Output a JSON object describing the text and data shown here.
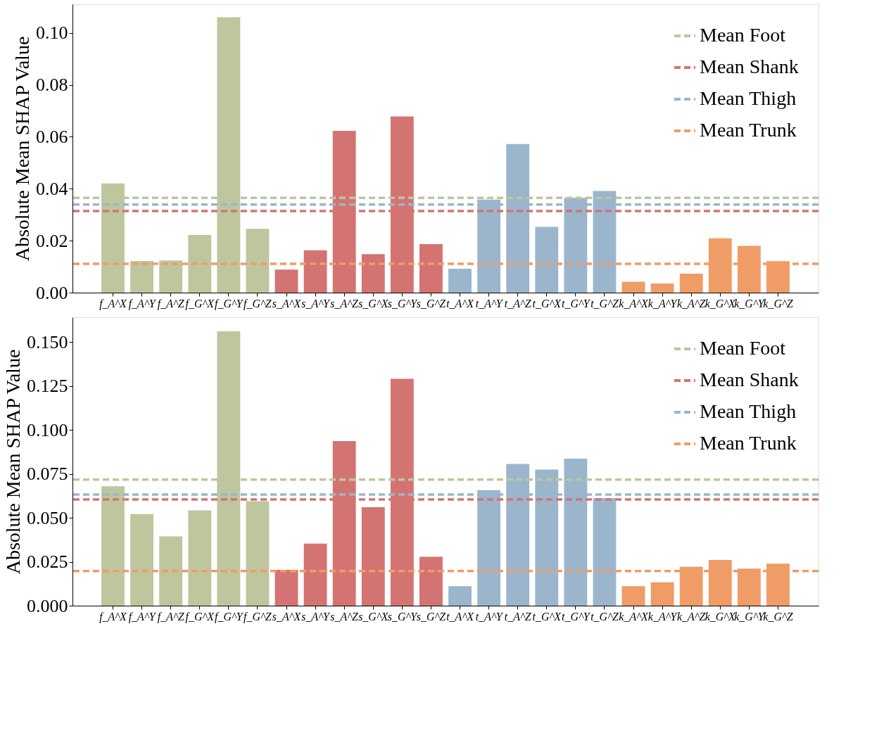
{
  "chart_data": [
    {
      "type": "bar",
      "ylabel": "Absolute Mean SHAP Value",
      "legend": "top right",
      "categories": [
        "f_A^X",
        "f_A^Y",
        "f_A^Z",
        "f_G^X",
        "f_G^Y",
        "f_G^Z",
        "s_A^X",
        "s_A^Y",
        "s_A^Z",
        "s_G^X",
        "s_G^Y",
        "s_G^Z",
        "t_A^X",
        "t_A^Y",
        "t_A^Z",
        "t_G^X",
        "t_G^Y",
        "t_G^Z",
        "k_A^X",
        "k_A^Y",
        "k_A^Z",
        "k_G^X",
        "k_G^Y",
        "k_G^Z"
      ],
      "values": [
        0.042,
        0.0122,
        0.0124,
        0.0222,
        0.106,
        0.0246,
        0.0089,
        0.0163,
        0.0623,
        0.0148,
        0.0678,
        0.0187,
        0.0092,
        0.0358,
        0.0572,
        0.0253,
        0.0365,
        0.0391,
        0.0042,
        0.0035,
        0.0073,
        0.0209,
        0.018,
        0.0121
      ],
      "colors": [
        "#bec69e",
        "#bec69e",
        "#bec69e",
        "#bec69e",
        "#bec69e",
        "#bec69e",
        "#d37472",
        "#d37472",
        "#d37472",
        "#d37472",
        "#d37472",
        "#d37472",
        "#9bb6cc",
        "#9bb6cc",
        "#9bb6cc",
        "#9bb6cc",
        "#9bb6cc",
        "#9bb6cc",
        "#ef9c66",
        "#ef9c66",
        "#ef9c66",
        "#ef9c66",
        "#ef9c66",
        "#ef9c66"
      ],
      "ylim": [
        0,
        0.111
      ],
      "yticks": [
        {
          "value": 0,
          "label": "0.00"
        },
        {
          "value": 0.02,
          "label": "0.02"
        },
        {
          "value": 0.04,
          "label": "0.04"
        },
        {
          "value": 0.06,
          "label": "0.06"
        },
        {
          "value": 0.08,
          "label": "0.08"
        },
        {
          "value": 0.1,
          "label": "0.10"
        }
      ],
      "ref_lines": [
        {
          "axis": "y",
          "value": 0.0365,
          "label": "Mean Foot",
          "color": "#bec69e",
          "line_style": "dashed"
        },
        {
          "axis": "y",
          "value": 0.0314,
          "label": "Mean Shank",
          "color": "#d37472",
          "line_style": "dashed"
        },
        {
          "axis": "y",
          "value": 0.0339,
          "label": "Mean Thigh",
          "color": "#9bb6cc",
          "line_style": "dashed"
        },
        {
          "axis": "y",
          "value": 0.0111,
          "label": "Mean Trunk",
          "color": "#ef9c66",
          "line_style": "dashed"
        }
      ]
    },
    {
      "type": "bar",
      "ylabel": "Absolute Mean SHAP Value",
      "legend": "top right",
      "categories": [
        "f_A^X",
        "f_A^Y",
        "f_A^Z",
        "f_G^X",
        "f_G^Y",
        "f_G^Z",
        "s_A^X",
        "s_A^Y",
        "s_A^Z",
        "s_G^X",
        "s_G^Y",
        "s_G^Z",
        "t_A^X",
        "t_A^Y",
        "t_A^Z",
        "t_G^X",
        "t_G^Y",
        "t_G^Z",
        "k_A^X",
        "k_A^Y",
        "k_A^Z",
        "k_G^X",
        "k_G^Y",
        "k_G^Z"
      ],
      "values": [
        0.0679,
        0.0521,
        0.0394,
        0.0542,
        0.156,
        0.0594,
        0.0204,
        0.0353,
        0.0936,
        0.056,
        0.129,
        0.0278,
        0.0111,
        0.0657,
        0.0806,
        0.0774,
        0.0836,
        0.0611,
        0.0111,
        0.0133,
        0.0221,
        0.026,
        0.0211,
        0.0239
      ],
      "colors": [
        "#bec69e",
        "#bec69e",
        "#bec69e",
        "#bec69e",
        "#bec69e",
        "#bec69e",
        "#d37472",
        "#d37472",
        "#d37472",
        "#d37472",
        "#d37472",
        "#d37472",
        "#9bb6cc",
        "#9bb6cc",
        "#9bb6cc",
        "#9bb6cc",
        "#9bb6cc",
        "#9bb6cc",
        "#ef9c66",
        "#ef9c66",
        "#ef9c66",
        "#ef9c66",
        "#ef9c66",
        "#ef9c66"
      ],
      "ylim": [
        0,
        0.164
      ],
      "yticks": [
        {
          "value": 0,
          "label": "0.000"
        },
        {
          "value": 0.025,
          "label": "0.025"
        },
        {
          "value": 0.05,
          "label": "0.050"
        },
        {
          "value": 0.075,
          "label": "0.075"
        },
        {
          "value": 0.1,
          "label": "0.100"
        },
        {
          "value": 0.125,
          "label": "0.125"
        },
        {
          "value": 0.15,
          "label": "0.150"
        }
      ],
      "ref_lines": [
        {
          "axis": "y",
          "value": 0.0717,
          "label": "Mean Foot",
          "color": "#bec69e",
          "line_style": "dashed"
        },
        {
          "axis": "y",
          "value": 0.0604,
          "label": "Mean Shank",
          "color": "#d37472",
          "line_style": "dashed"
        },
        {
          "axis": "y",
          "value": 0.0632,
          "label": "Mean Thigh",
          "color": "#9bb6cc",
          "line_style": "dashed"
        },
        {
          "axis": "y",
          "value": 0.0197,
          "label": "Mean Trunk",
          "color": "#ef9c66",
          "line_style": "dashed"
        }
      ]
    }
  ]
}
